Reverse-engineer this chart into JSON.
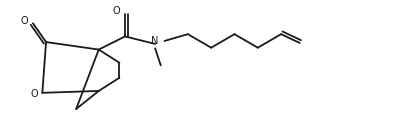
{
  "bg_color": "#ffffff",
  "line_color": "#1a1a1a",
  "line_width": 1.3,
  "figsize": [
    3.93,
    1.33
  ],
  "dpi": 100,
  "xlim": [
    0,
    9.5
  ],
  "ylim": [
    0,
    3.5
  ]
}
